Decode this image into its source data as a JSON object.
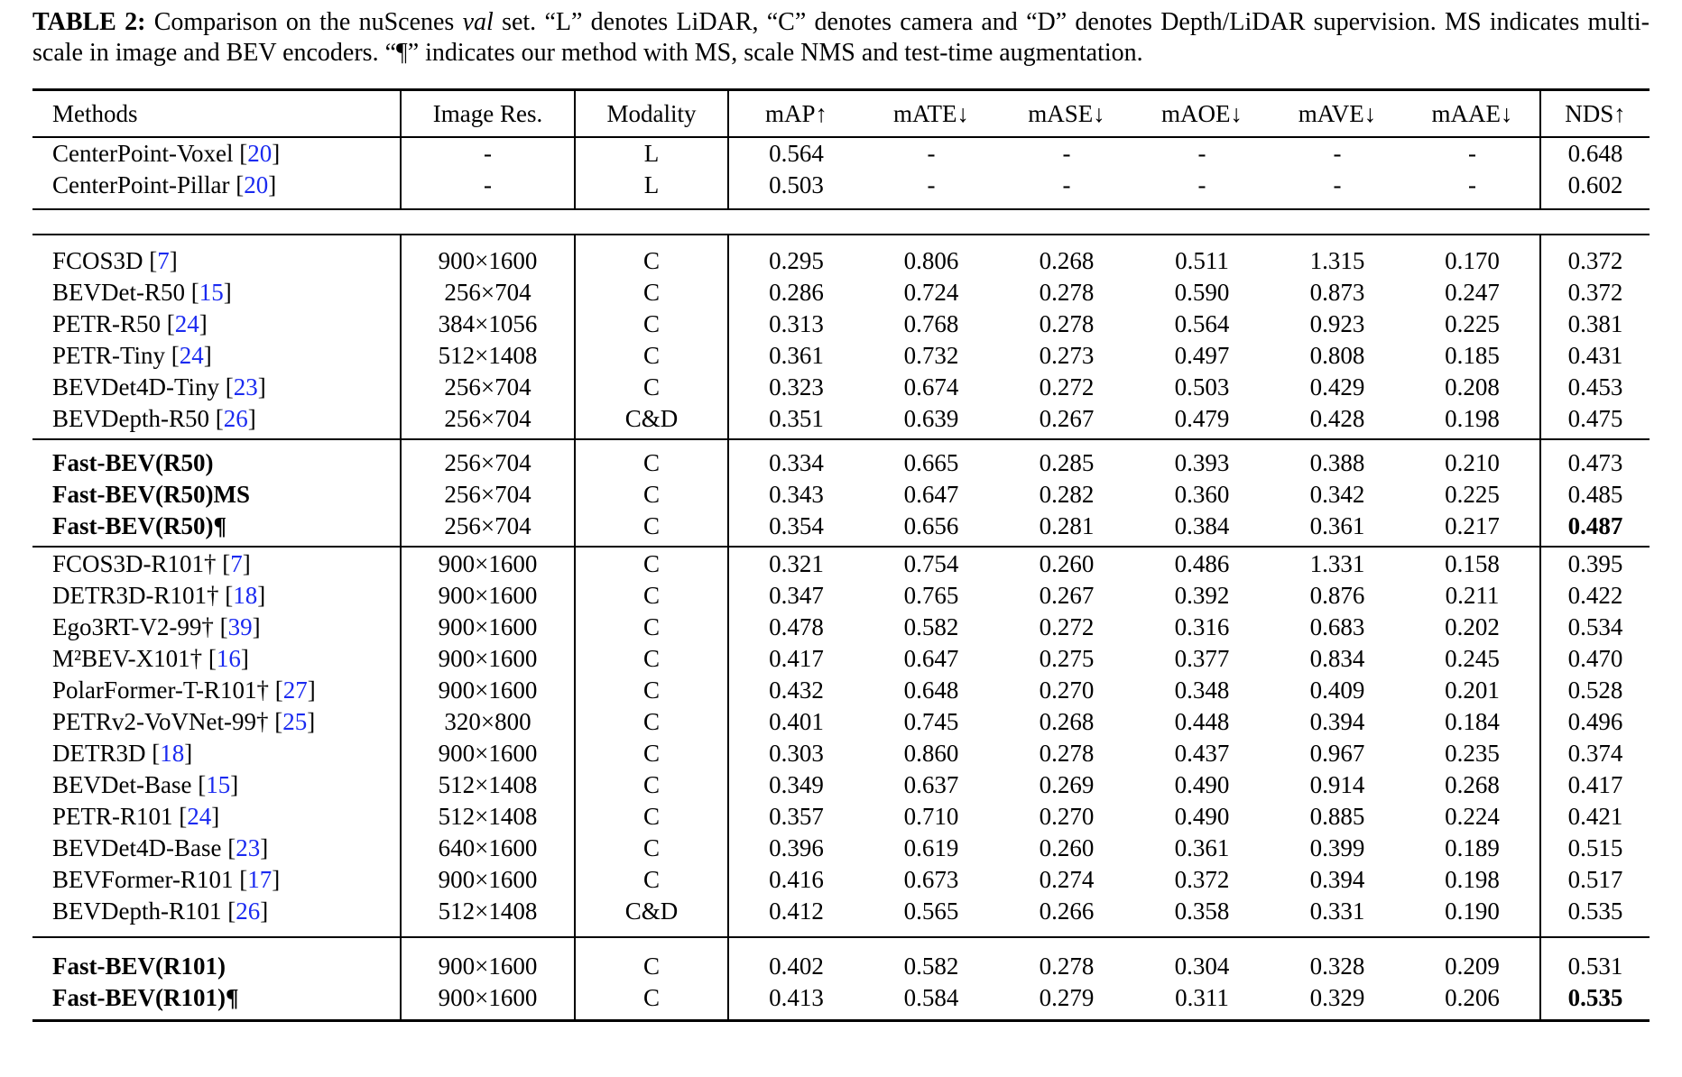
{
  "colors": {
    "citation": "#1a2af0",
    "text": "#000000",
    "background": "#ffffff"
  },
  "caption": {
    "label": "TABLE 2:",
    "pre_italic": " Comparison on the nuScenes ",
    "italic_word": "val",
    "post_italic": " set. “L” denotes LiDAR, “C” denotes camera and “D” denotes Depth/LiDAR supervision. MS indicates multi-scale in image and BEV encoders. “¶” indicates our method with MS, scale NMS and test-time augmentation."
  },
  "table": {
    "columns": [
      "Methods",
      "Image Res.",
      "Modality",
      "mAP↑",
      "mATE↓",
      "mASE↓",
      "mAOE↓",
      "mAVE↓",
      "mAAE↓",
      "NDS↑"
    ],
    "groups": [
      {
        "rows": [
          {
            "method": "CenterPoint-Voxel",
            "cite": "20",
            "res": "-",
            "modality": "L",
            "values": [
              "0.564",
              "-",
              "-",
              "-",
              "-",
              "-",
              "0.648"
            ]
          },
          {
            "method": "CenterPoint-Pillar",
            "cite": "20",
            "res": "-",
            "modality": "L",
            "values": [
              "0.503",
              "-",
              "-",
              "-",
              "-",
              "-",
              "0.602"
            ]
          }
        ]
      },
      {
        "rows": [
          {
            "method": "FCOS3D",
            "cite": "7",
            "res": "900×1600",
            "modality": "C",
            "values": [
              "0.295",
              "0.806",
              "0.268",
              "0.511",
              "1.315",
              "0.170",
              "0.372"
            ]
          },
          {
            "method": "BEVDet-R50",
            "cite": "15",
            "res": "256×704",
            "modality": "C",
            "values": [
              "0.286",
              "0.724",
              "0.278",
              "0.590",
              "0.873",
              "0.247",
              "0.372"
            ]
          },
          {
            "method": "PETR-R50",
            "cite": "24",
            "res": "384×1056",
            "modality": "C",
            "values": [
              "0.313",
              "0.768",
              "0.278",
              "0.564",
              "0.923",
              "0.225",
              "0.381"
            ]
          },
          {
            "method": "PETR-Tiny",
            "cite": "24",
            "res": "512×1408",
            "modality": "C",
            "values": [
              "0.361",
              "0.732",
              "0.273",
              "0.497",
              "0.808",
              "0.185",
              "0.431"
            ]
          },
          {
            "method": "BEVDet4D-Tiny",
            "cite": "23",
            "res": "256×704",
            "modality": "C",
            "values": [
              "0.323",
              "0.674",
              "0.272",
              "0.503",
              "0.429",
              "0.208",
              "0.453"
            ]
          },
          {
            "method": "BEVDepth-R50",
            "cite": "26",
            "res": "256×704",
            "modality": "C&D",
            "values": [
              "0.351",
              "0.639",
              "0.267",
              "0.479",
              "0.428",
              "0.198",
              "0.475"
            ]
          }
        ]
      },
      {
        "rows": [
          {
            "method": "Fast-BEV(R50)",
            "cite": "",
            "bold": true,
            "res": "256×704",
            "modality": "C",
            "values": [
              "0.334",
              "0.665",
              "0.285",
              "0.393",
              "0.388",
              "0.210",
              "0.473"
            ]
          },
          {
            "method": "Fast-BEV(R50)MS",
            "cite": "",
            "bold": true,
            "res": "256×704",
            "modality": "C",
            "values": [
              "0.343",
              "0.647",
              "0.282",
              "0.360",
              "0.342",
              "0.225",
              "0.485"
            ]
          },
          {
            "method": "Fast-BEV(R50)¶",
            "cite": "",
            "bold": true,
            "nds_bold": true,
            "res": "256×704",
            "modality": "C",
            "values": [
              "0.354",
              "0.656",
              "0.281",
              "0.384",
              "0.361",
              "0.217",
              "0.487"
            ]
          }
        ]
      },
      {
        "rows": [
          {
            "method": "FCOS3D-R101†",
            "cite": "7",
            "res": "900×1600",
            "modality": "C",
            "values": [
              "0.321",
              "0.754",
              "0.260",
              "0.486",
              "1.331",
              "0.158",
              "0.395"
            ]
          },
          {
            "method": "DETR3D-R101†",
            "cite": "18",
            "res": "900×1600",
            "modality": "C",
            "values": [
              "0.347",
              "0.765",
              "0.267",
              "0.392",
              "0.876",
              "0.211",
              "0.422"
            ]
          },
          {
            "method": "Ego3RT-V2-99†",
            "cite": "39",
            "res": "900×1600",
            "modality": "C",
            "values": [
              "0.478",
              "0.582",
              "0.272",
              "0.316",
              "0.683",
              "0.202",
              "0.534"
            ]
          },
          {
            "method": "M²BEV-X101†",
            "cite": "16",
            "res": "900×1600",
            "modality": "C",
            "values": [
              "0.417",
              "0.647",
              "0.275",
              "0.377",
              "0.834",
              "0.245",
              "0.470"
            ]
          },
          {
            "method": "PolarFormer-T-R101†",
            "cite": "27",
            "res": "900×1600",
            "modality": "C",
            "values": [
              "0.432",
              "0.648",
              "0.270",
              "0.348",
              "0.409",
              "0.201",
              "0.528"
            ]
          },
          {
            "method": "PETRv2-VoVNet-99†",
            "cite": "25",
            "res": "320×800",
            "modality": "C",
            "values": [
              "0.401",
              "0.745",
              "0.268",
              "0.448",
              "0.394",
              "0.184",
              "0.496"
            ]
          },
          {
            "method": "DETR3D",
            "cite": "18",
            "res": "900×1600",
            "modality": "C",
            "values": [
              "0.303",
              "0.860",
              "0.278",
              "0.437",
              "0.967",
              "0.235",
              "0.374"
            ]
          },
          {
            "method": "BEVDet-Base",
            "cite": "15",
            "res": "512×1408",
            "modality": "C",
            "values": [
              "0.349",
              "0.637",
              "0.269",
              "0.490",
              "0.914",
              "0.268",
              "0.417"
            ]
          },
          {
            "method": "PETR-R101",
            "cite": "24",
            "res": "512×1408",
            "modality": "C",
            "values": [
              "0.357",
              "0.710",
              "0.270",
              "0.490",
              "0.885",
              "0.224",
              "0.421"
            ]
          },
          {
            "method": "BEVDet4D-Base",
            "cite": "23",
            "res": "640×1600",
            "modality": "C",
            "values": [
              "0.396",
              "0.619",
              "0.260",
              "0.361",
              "0.399",
              "0.189",
              "0.515"
            ]
          },
          {
            "method": "BEVFormer-R101",
            "cite": "17",
            "res": "900×1600",
            "modality": "C",
            "values": [
              "0.416",
              "0.673",
              "0.274",
              "0.372",
              "0.394",
              "0.198",
              "0.517"
            ]
          },
          {
            "method": "BEVDepth-R101",
            "cite": "26",
            "res": "512×1408",
            "modality": "C&D",
            "values": [
              "0.412",
              "0.565",
              "0.266",
              "0.358",
              "0.331",
              "0.190",
              "0.535"
            ]
          }
        ]
      },
      {
        "rows": [
          {
            "method": "Fast-BEV(R101)",
            "cite": "",
            "bold": true,
            "res": "900×1600",
            "modality": "C",
            "values": [
              "0.402",
              "0.582",
              "0.278",
              "0.304",
              "0.328",
              "0.209",
              "0.531"
            ]
          },
          {
            "method": "Fast-BEV(R101)¶",
            "cite": "",
            "bold": true,
            "nds_bold": true,
            "res": "900×1600",
            "modality": "C",
            "values": [
              "0.413",
              "0.584",
              "0.279",
              "0.311",
              "0.329",
              "0.206",
              "0.535"
            ]
          }
        ]
      }
    ]
  }
}
